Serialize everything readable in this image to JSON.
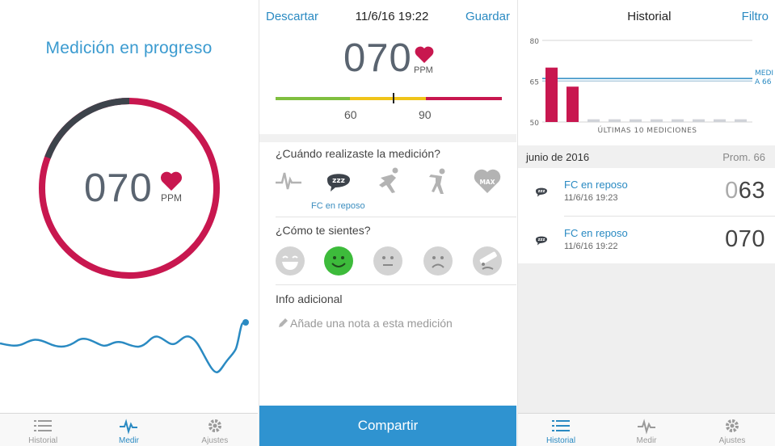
{
  "measure_screen": {
    "title": "Medición en progreso",
    "bpm": "070",
    "unit": "PPM"
  },
  "edit_screen": {
    "discard": "Descartar",
    "datetime": "11/6/16 19:22",
    "save": "Guardar",
    "bpm": "070",
    "unit": "PPM",
    "scale_low": "60",
    "scale_high": "90",
    "question_when": "¿Cuándo realizaste la medición?",
    "activities": [
      "wave-icon",
      "sleep-icon",
      "runner-icon",
      "stretching-icon",
      "max-heart-icon"
    ],
    "max_label": "MAX",
    "sleep_label": "zzz",
    "selected_activity_label": "FC en reposo",
    "question_feel": "¿Cómo te sientes?",
    "moods": [
      "very-happy",
      "happy",
      "neutral",
      "sad",
      "sick"
    ],
    "selected_mood_index": 1,
    "extra_info": "Info adicional",
    "note_placeholder": "Añade una nota a esta medición",
    "share": "Compartir"
  },
  "history_screen": {
    "title": "Historial",
    "filter": "Filtro",
    "chart_data": {
      "type": "bar",
      "title": "",
      "xlabel": "ÚLTIMAS 10 MEDICIONES",
      "ylabel": "",
      "y_ticks": [
        "80",
        "65",
        "50"
      ],
      "ylim": [
        50,
        80
      ],
      "values": [
        70,
        63,
        51,
        51,
        51,
        51,
        51,
        51,
        51,
        51
      ],
      "average_line": 66,
      "average_label": [
        "MEDI",
        "A 66"
      ]
    },
    "month": "junio de 2016",
    "average": "Prom. 66",
    "entries": [
      {
        "title": "FC en reposo",
        "datetime": "11/6/16 19:23",
        "value_prefix": "0",
        "value": "63"
      },
      {
        "title": "FC en reposo",
        "datetime": "11/6/16 19:22",
        "value_prefix": "",
        "value": "070"
      }
    ]
  },
  "tabs": [
    "Historial",
    "Medir",
    "Ajustes"
  ],
  "colors": {
    "accent": "#2a8ac2",
    "heart": "#c8174f",
    "dark": "#3d434b"
  }
}
